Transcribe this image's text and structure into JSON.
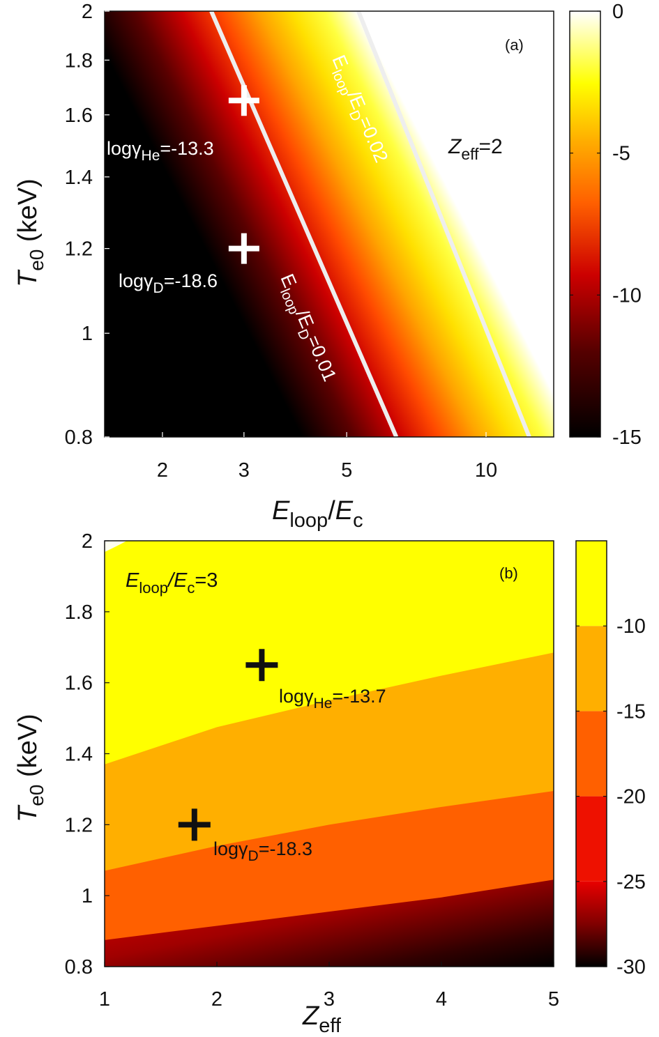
{
  "chart_data": [
    {
      "id": "a",
      "type": "heatmap",
      "panel_label": "(a)",
      "x": {
        "label_main": "E",
        "label_sub": "loop",
        "label_main2": "E",
        "label_sub2": "c",
        "scale": "log",
        "range": [
          1.5,
          14
        ],
        "ticks": [
          2,
          3,
          5,
          10
        ]
      },
      "y": {
        "label_main": "T",
        "label_sub": "e0",
        "label_unit": "(keV)",
        "scale": "log",
        "range": [
          0.8,
          2
        ],
        "ticks": [
          0.8,
          1,
          1.2,
          1.4,
          1.6,
          1.8,
          2
        ]
      },
      "colorbar": {
        "range": [
          -15,
          0
        ],
        "ticks": [
          0,
          -5,
          -10,
          -15
        ]
      },
      "tick_labels": {
        "x": [
          "2",
          "3",
          "5",
          "10"
        ],
        "y": [
          "0.8",
          "1",
          "1.2",
          "1.4",
          "1.6",
          "1.8",
          "2"
        ],
        "cb": [
          "0",
          "-5",
          "-10",
          "-15"
        ]
      },
      "contour_lines": [
        {
          "ratio": "0.01",
          "points": [
            [
              2.55,
              2.0
            ],
            [
              6.4,
              0.8
            ]
          ],
          "color": "#ffffff"
        },
        {
          "ratio": "0.02",
          "points": [
            [
              5.3,
              2.0
            ],
            [
              12.4,
              0.8
            ]
          ],
          "color": "#ffffff"
        }
      ],
      "line_labels": [
        {
          "pre": "E",
          "sub": "loop",
          "mid": "/E",
          "sub2": "D",
          "post": "=0.01"
        },
        {
          "pre": "E",
          "sub": "loop",
          "mid": "/E",
          "sub2": "D",
          "post": "=0.02"
        }
      ],
      "markers": [
        {
          "x": 3.0,
          "y": 1.65,
          "label_pre": "log",
          "label_greek": "γ",
          "label_sub": "He",
          "label_value": "=-13.3"
        },
        {
          "x": 3.0,
          "y": 1.2,
          "label_pre": "log",
          "label_greek": "γ",
          "label_sub": "D",
          "label_value": "=-18.6"
        }
      ],
      "annotation": {
        "main": "Z",
        "sub": "eff",
        "post": "=2"
      }
    },
    {
      "id": "b",
      "type": "heatmap",
      "panel_label": "(b)",
      "x": {
        "label_main": "Z",
        "label_sub": "eff",
        "scale": "linear",
        "range": [
          1,
          5
        ],
        "ticks": [
          1,
          2,
          3,
          4,
          5
        ]
      },
      "y": {
        "label_main": "T",
        "label_sub": "e0",
        "label_unit": "(keV)",
        "scale": "linear",
        "range": [
          0.8,
          2
        ],
        "ticks": [
          0.8,
          1,
          1.2,
          1.4,
          1.6,
          1.8,
          2
        ]
      },
      "colorbar": {
        "range": [
          -30,
          -5
        ],
        "ticks": [
          -10,
          -15,
          -20,
          -25,
          -30
        ],
        "levels": [
          {
            "from": -30,
            "to": -25,
            "color": "gradient"
          },
          {
            "from": -25,
            "to": -20,
            "color": "#ee1100"
          },
          {
            "from": -20,
            "to": -15,
            "color": "#ff6000"
          },
          {
            "from": -15,
            "to": -10,
            "color": "#ffaf00"
          },
          {
            "from": -10,
            "to": -5,
            "color": "#ffff00"
          },
          {
            "from": -5,
            "to": 0,
            "color": "#fffff0"
          }
        ]
      },
      "tick_labels": {
        "x": [
          "1",
          "2",
          "3",
          "4",
          "5"
        ],
        "y": [
          "0.8",
          "1",
          "1.2",
          "1.4",
          "1.6",
          "1.8",
          "2"
        ],
        "cb": [
          "-10",
          "-15",
          "-20",
          "-25",
          "-30"
        ]
      },
      "contour_boundaries": [
        {
          "level": -15,
          "points": [
            [
              1,
              1.37
            ],
            [
              2,
              1.475
            ],
            [
              3,
              1.55
            ],
            [
              4,
              1.62
            ],
            [
              5,
              1.685
            ]
          ]
        },
        {
          "level": -20,
          "points": [
            [
              1,
              1.07
            ],
            [
              2,
              1.14
            ],
            [
              3,
              1.2
            ],
            [
              4,
              1.25
            ],
            [
              5,
              1.295
            ]
          ]
        },
        {
          "level": -25,
          "points": [
            [
              1,
              0.875
            ],
            [
              2,
              0.915
            ],
            [
              3,
              0.955
            ],
            [
              4,
              0.995
            ],
            [
              5,
              1.045
            ]
          ]
        }
      ],
      "markers": [
        {
          "x": 2.4,
          "y": 1.65,
          "label_pre": "log",
          "label_greek": "γ",
          "label_sub": "He",
          "label_value": "=-13.7"
        },
        {
          "x": 1.8,
          "y": 1.2,
          "label_pre": "log",
          "label_greek": "γ",
          "label_sub": "D",
          "label_value": "=-18.3"
        }
      ],
      "annotation": {
        "main": "E",
        "sub": "loop",
        "mid": "/E",
        "sub2": "c",
        "post": "=3"
      }
    }
  ]
}
